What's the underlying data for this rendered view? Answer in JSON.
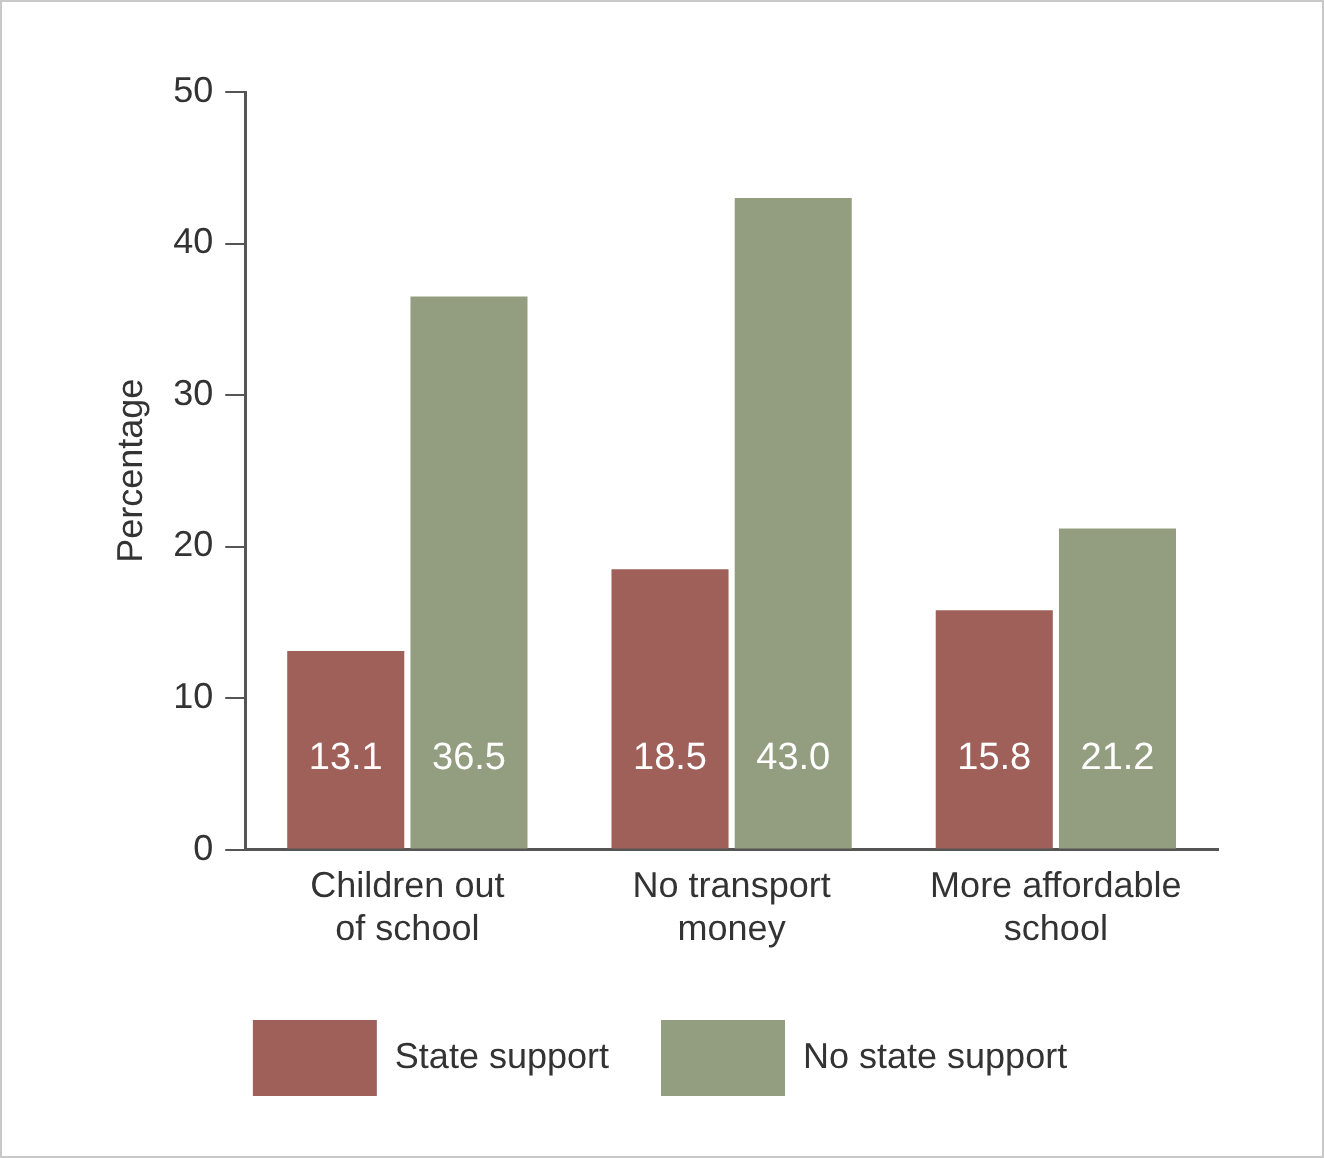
{
  "chart_data": {
    "type": "bar",
    "ylabel": "Percentage",
    "categories": [
      "Children out of school",
      "No transport money",
      "More affordable school"
    ],
    "series": [
      {
        "name": "State support",
        "color": "#a0605a",
        "values": [
          13.1,
          18.5,
          15.8
        ]
      },
      {
        "name": "No state support",
        "color": "#939e80",
        "values": [
          36.5,
          43.0,
          21.2
        ]
      }
    ],
    "value_labels": [
      [
        "13.1",
        "18.5",
        "15.8"
      ],
      [
        "36.5",
        "43.0",
        "21.2"
      ]
    ],
    "ylim": [
      0,
      50
    ],
    "yticks": [
      0,
      10,
      20,
      30,
      40,
      50
    ],
    "grid": false,
    "legend": "bottom"
  }
}
